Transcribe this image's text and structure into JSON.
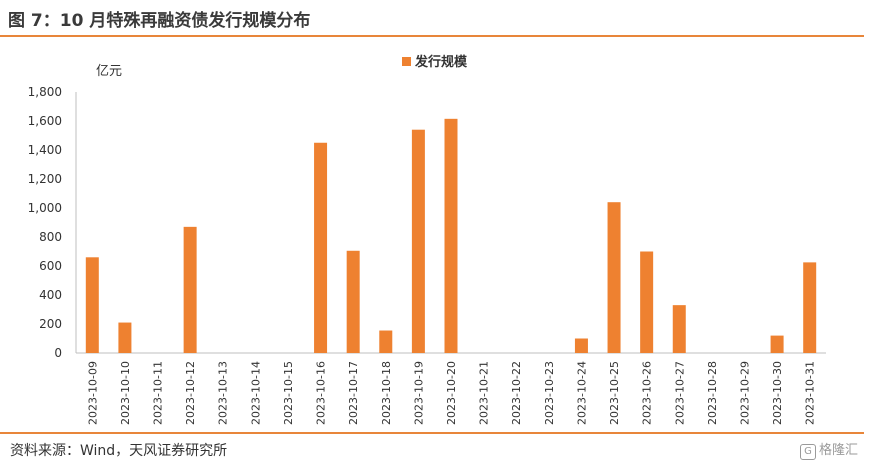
{
  "header": {
    "title": "图 7：10 月特殊再融资债发行规模分布"
  },
  "footer": {
    "source": "资料来源：Wind，天风证券研究所"
  },
  "watermark": {
    "text": "格隆汇",
    "icon": "gelonghui-logo-icon"
  },
  "colors": {
    "bar": "#ee8130",
    "rule": "#e8863a",
    "axis": "#bfbfbf"
  },
  "chart_data": {
    "type": "bar",
    "ylabel": "亿元",
    "ylim": [
      0,
      1800
    ],
    "yticks": [
      "0",
      "200",
      "400",
      "600",
      "800",
      "1,000",
      "1,200",
      "1,400",
      "1,600",
      "1,800"
    ],
    "legend": {
      "position": "top-center"
    },
    "grid": false,
    "categories": [
      "2023-10-09",
      "2023-10-10",
      "2023-10-11",
      "2023-10-12",
      "2023-10-13",
      "2023-10-14",
      "2023-10-15",
      "2023-10-16",
      "2023-10-17",
      "2023-10-18",
      "2023-10-19",
      "2023-10-20",
      "2023-10-21",
      "2023-10-22",
      "2023-10-23",
      "2023-10-24",
      "2023-10-25",
      "2023-10-26",
      "2023-10-27",
      "2023-10-28",
      "2023-10-29",
      "2023-10-30",
      "2023-10-31"
    ],
    "series": [
      {
        "name": "发行规模",
        "values": [
          660,
          210,
          0,
          870,
          0,
          0,
          0,
          1450,
          705,
          155,
          1540,
          1615,
          0,
          0,
          0,
          100,
          1040,
          700,
          330,
          0,
          0,
          120,
          625
        ]
      }
    ]
  }
}
